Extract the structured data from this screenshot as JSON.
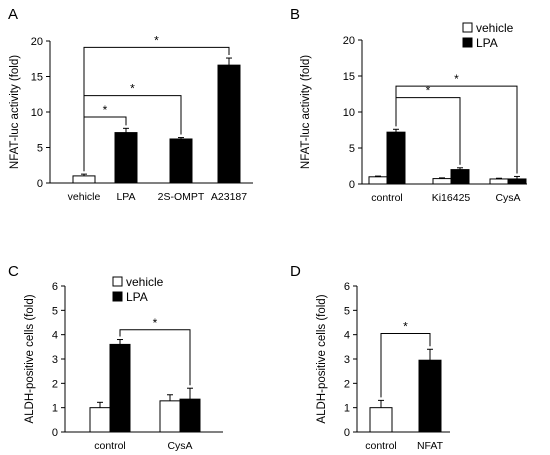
{
  "colors": {
    "filled": "#000000",
    "open": "#ffffff",
    "stroke": "#000000"
  },
  "chart_data": [
    {
      "type": "bar",
      "panel": "A",
      "ylabel": "NFAT-luc activity (fold)",
      "ylim": [
        0,
        20
      ],
      "yticks": [
        0,
        5,
        10,
        15,
        20
      ],
      "categories": [
        "vehicle",
        "LPA",
        "2S-OMPT",
        "A23187"
      ],
      "series": [
        {
          "fill": "mixed",
          "values": [
            1.0,
            7.1,
            6.2,
            16.6
          ],
          "errors": [
            0.25,
            0.6,
            0.2,
            1.0
          ],
          "fills": [
            "open",
            "filled",
            "filled",
            "filled"
          ]
        }
      ],
      "annotations": [
        {
          "from": 0,
          "to": 1,
          "level": 9.3,
          "label": "*"
        },
        {
          "from": 0,
          "to": 2,
          "level": 12.3,
          "label": "*"
        },
        {
          "from": 0,
          "to": 3,
          "level": 19.1,
          "label": "*"
        }
      ]
    },
    {
      "type": "bar",
      "panel": "B",
      "ylabel": "NFAT-luc activity (fold)",
      "ylim": [
        0,
        20
      ],
      "yticks": [
        0,
        5,
        10,
        15,
        20
      ],
      "categories": [
        "control",
        "Ki16425",
        "CysA"
      ],
      "legend": {
        "entries": [
          "vehicle",
          "LPA"
        ],
        "placement": "top-right"
      },
      "series": [
        {
          "name": "vehicle",
          "fill": "open",
          "values": [
            1.0,
            0.75,
            0.7
          ],
          "errors": [
            0.1,
            0.1,
            0.1
          ]
        },
        {
          "name": "LPA",
          "fill": "filled",
          "values": [
            7.2,
            2.0,
            0.7
          ],
          "errors": [
            0.4,
            0.25,
            0.35
          ]
        }
      ],
      "annotations": [
        {
          "fromCat": 0,
          "toCat": 1,
          "level": 12.0,
          "label": "*"
        },
        {
          "fromCat": 0,
          "toCat": 2,
          "level": 13.6,
          "label": "*"
        }
      ]
    },
    {
      "type": "bar",
      "panel": "C",
      "ylabel": "ALDH-positive cells (fold)",
      "ylim": [
        0,
        6
      ],
      "yticks": [
        0,
        1,
        2,
        3,
        4,
        5,
        6
      ],
      "categories": [
        "control",
        "CysA"
      ],
      "legend": {
        "entries": [
          "vehicle",
          "LPA"
        ],
        "placement": "top"
      },
      "series": [
        {
          "name": "vehicle",
          "fill": "open",
          "values": [
            1.0,
            1.28
          ],
          "errors": [
            0.22,
            0.25
          ]
        },
        {
          "name": "LPA",
          "fill": "filled",
          "values": [
            3.6,
            1.35
          ],
          "errors": [
            0.2,
            0.45
          ]
        }
      ],
      "annotations": [
        {
          "fromCat": 0,
          "toCat": 1,
          "level": 4.2,
          "label": "*"
        }
      ]
    },
    {
      "type": "bar",
      "panel": "D",
      "ylabel": "ALDH-positive cells (fold)",
      "ylim": [
        0,
        6
      ],
      "yticks": [
        0,
        1,
        2,
        3,
        4,
        5,
        6
      ],
      "categories": [
        "control",
        "NFAT"
      ],
      "series": [
        {
          "fill": "mixed",
          "values": [
            1.0,
            2.95
          ],
          "errors": [
            0.3,
            0.45
          ],
          "fills": [
            "open",
            "filled"
          ]
        }
      ],
      "annotations": [
        {
          "from": 0,
          "to": 1,
          "level": 4.05,
          "label": "*"
        }
      ]
    }
  ]
}
